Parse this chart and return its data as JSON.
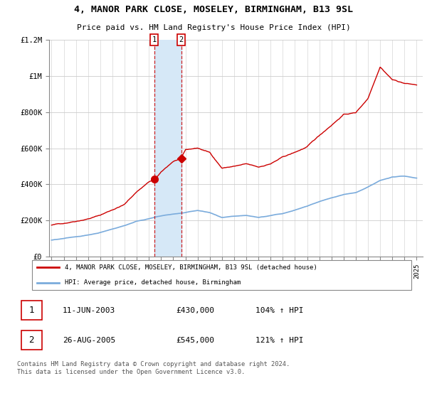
{
  "title": "4, MANOR PARK CLOSE, MOSELEY, BIRMINGHAM, B13 9SL",
  "subtitle": "Price paid vs. HM Land Registry's House Price Index (HPI)",
  "legend_line1": "4, MANOR PARK CLOSE, MOSELEY, BIRMINGHAM, B13 9SL (detached house)",
  "legend_line2": "HPI: Average price, detached house, Birmingham",
  "transaction1_label": "1",
  "transaction1_date": "11-JUN-2003",
  "transaction1_price": "£430,000",
  "transaction1_hpi": "104% ↑ HPI",
  "transaction2_label": "2",
  "transaction2_date": "26-AUG-2005",
  "transaction2_price": "£545,000",
  "transaction2_hpi": "121% ↑ HPI",
  "footer": "Contains HM Land Registry data © Crown copyright and database right 2024.\nThis data is licensed under the Open Government Licence v3.0.",
  "ylim": [
    0,
    1200000
  ],
  "yticks": [
    0,
    200000,
    400000,
    600000,
    800000,
    1000000,
    1200000
  ],
  "ytick_labels": [
    "£0",
    "£200K",
    "£400K",
    "£600K",
    "£800K",
    "£1M",
    "£1.2M"
  ],
  "red_color": "#cc0000",
  "blue_color": "#7aabdc",
  "shade_color": "#d6e8f7",
  "transaction1_year": 2003.44,
  "transaction2_year": 2005.65,
  "transaction1_price_val": 430000,
  "transaction2_price_val": 545000,
  "red_years": [
    1995,
    1996,
    1997,
    1998,
    1999,
    2000,
    2001,
    2002,
    2003,
    2003.44,
    2004,
    2005,
    2005.65,
    2006,
    2007,
    2008,
    2009,
    2010,
    2011,
    2012,
    2013,
    2014,
    2015,
    2016,
    2017,
    2018,
    2019,
    2020,
    2021,
    2022,
    2023,
    2024,
    2025
  ],
  "red_vals": [
    175000,
    185000,
    200000,
    215000,
    235000,
    265000,
    295000,
    365000,
    420000,
    430000,
    470000,
    530000,
    545000,
    590000,
    600000,
    575000,
    490000,
    500000,
    510000,
    490000,
    510000,
    545000,
    570000,
    600000,
    660000,
    720000,
    780000,
    790000,
    870000,
    1050000,
    980000,
    960000,
    950000
  ],
  "blue_years": [
    1995,
    1996,
    1997,
    1998,
    1999,
    2000,
    2001,
    2002,
    2003,
    2004,
    2005,
    2006,
    2007,
    2008,
    2009,
    2010,
    2011,
    2012,
    2013,
    2014,
    2015,
    2016,
    2017,
    2018,
    2019,
    2020,
    2021,
    2022,
    2023,
    2024,
    2025
  ],
  "blue_vals": [
    92000,
    100000,
    110000,
    120000,
    135000,
    155000,
    175000,
    200000,
    215000,
    230000,
    240000,
    248000,
    260000,
    248000,
    220000,
    225000,
    228000,
    218000,
    228000,
    240000,
    260000,
    280000,
    305000,
    325000,
    345000,
    355000,
    385000,
    420000,
    440000,
    445000,
    435000
  ]
}
